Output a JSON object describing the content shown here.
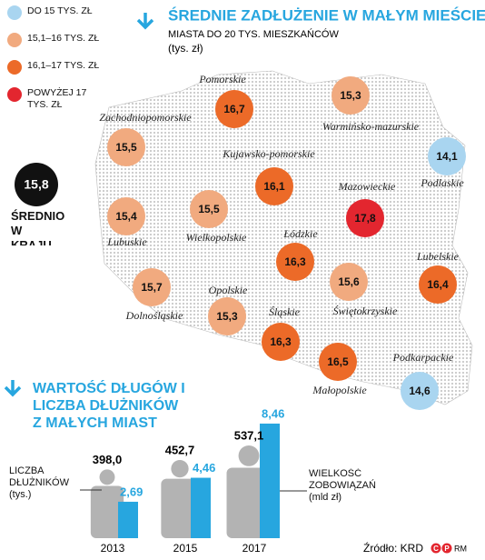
{
  "chart_data": [
    {
      "type": "bubble-map",
      "title": "ŚREDNIE ZADŁUŻENIE W MAŁYM MIEŚCIE",
      "subtitle": "MIASTA DO 20 TYS. MIESZKAŃCÓW",
      "unit": "(tys. zł)",
      "legend": [
        {
          "label": "DO 15 TYS. ZŁ",
          "color": "#a9d5f0"
        },
        {
          "label": "15,1–16 TYS. ZŁ",
          "color": "#f1aa7f"
        },
        {
          "label": "16,1–17 TYS. ZŁ",
          "color": "#ec6a28"
        },
        {
          "label": "POWYŻEJ 17 TYS. ZŁ",
          "color": "#e3262f"
        }
      ],
      "average": {
        "label": "ŚREDNIO W KRAJU",
        "value": 15.8,
        "value_label": "15,8",
        "color": "#111111"
      },
      "categories": [
        "Pomorskie",
        "Warmińsko-mazurskie",
        "Zachodniopomorskie",
        "Podlaskie",
        "Kujawsko-pomorskie",
        "Mazowieckie",
        "Lubuskie",
        "Wielkopolskie",
        "Łódzkie",
        "Lubelskie",
        "Dolnośląskie",
        "Opolskie",
        "Świętokrzyskie",
        "Śląskie",
        "Małopolskie",
        "Podkarpackie"
      ],
      "values": [
        16.7,
        15.3,
        15.5,
        14.1,
        16.1,
        17.8,
        15.4,
        15.5,
        16.3,
        16.4,
        15.7,
        15.3,
        15.6,
        16.3,
        16.5,
        14.6
      ],
      "value_labels": [
        "16,7",
        "15,3",
        "15,5",
        "14,1",
        "16,1",
        "17,8",
        "15,4",
        "15,5",
        "16,3",
        "16,4",
        "15,7",
        "15,3",
        "15,6",
        "16,3",
        "16,5",
        "14,6"
      ],
      "colors": [
        "#ec6a28",
        "#f1aa7f",
        "#f1aa7f",
        "#a9d5f0",
        "#ec6a28",
        "#e3262f",
        "#f1aa7f",
        "#f1aa7f",
        "#ec6a28",
        "#ec6a28",
        "#f1aa7f",
        "#f1aa7f",
        "#f1aa7f",
        "#ec6a28",
        "#ec6a28",
        "#a9d5f0"
      ]
    },
    {
      "type": "bar",
      "title": "WARTOŚĆ DŁUGÓW I LICZBA DŁUŻNIKÓW Z MAŁYCH MIAST",
      "categories": [
        "2013",
        "2015",
        "2017"
      ],
      "series": [
        {
          "name": "LICZBA DŁUŻNIKÓW (tys.)",
          "color": "#b3b3b3",
          "values": [
            398.0,
            452.7,
            537.1
          ],
          "value_labels": [
            "398,0",
            "452,7",
            "537,1"
          ]
        },
        {
          "name": "WIELKOŚĆ ZOBOWIĄZAŃ (mld zł)",
          "color": "#27a6df",
          "values": [
            2.69,
            4.46,
            8.46
          ],
          "value_labels": [
            "2,69",
            "4,46",
            "8,46"
          ]
        }
      ]
    }
  ],
  "source": "Źródło: KRD",
  "logo": {
    "marks": [
      "C",
      "P"
    ],
    "text": "RM"
  }
}
